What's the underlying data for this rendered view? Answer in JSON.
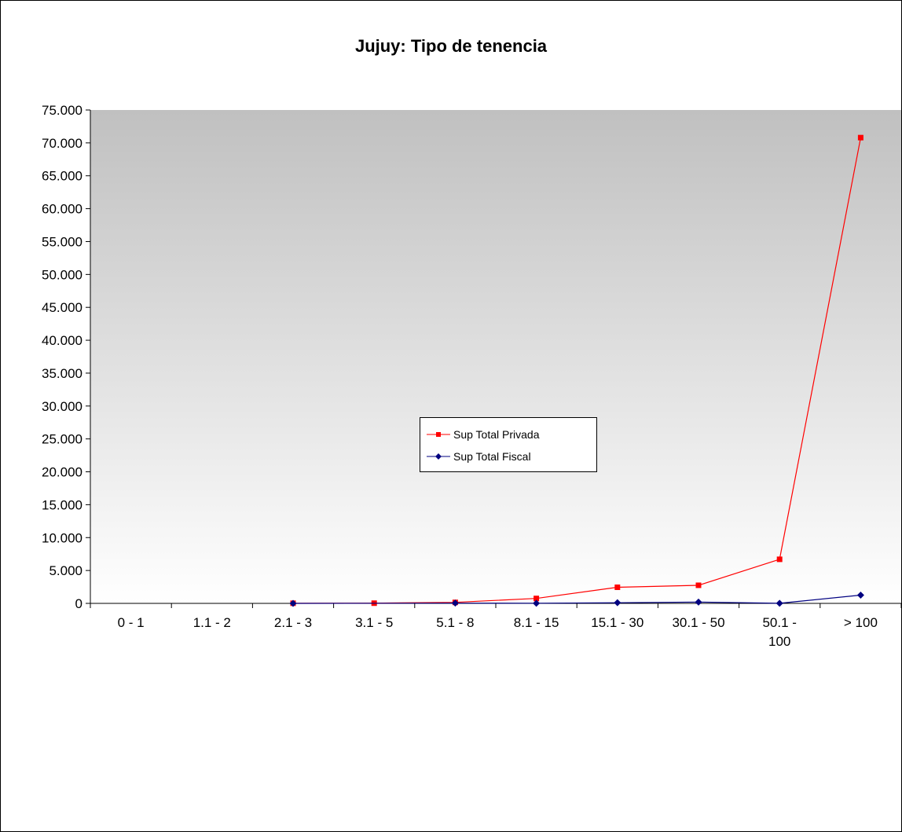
{
  "chart_data": {
    "type": "line",
    "title": "Jujuy: Tipo de tenencia",
    "xlabel": "",
    "ylabel": "",
    "categories": [
      "0 - 1",
      "1.1 - 2",
      "2.1 - 3",
      "3.1 - 5",
      "5.1 - 8",
      "8.1 - 15",
      "15.1 - 30",
      "30.1 - 50",
      "50.1 - 100",
      "> 100"
    ],
    "category_lines": [
      [
        "0 - 1"
      ],
      [
        "1.1 - 2"
      ],
      [
        "2.1 - 3"
      ],
      [
        "3.1 - 5"
      ],
      [
        "5.1 - 8"
      ],
      [
        "8.1 - 15"
      ],
      [
        "15.1 - 30"
      ],
      [
        "30.1 - 50"
      ],
      [
        "50.1 -",
        "100"
      ],
      [
        "> 100"
      ]
    ],
    "ylim": [
      0,
      75000
    ],
    "y_ticks": [
      0,
      5000,
      10000,
      15000,
      20000,
      25000,
      30000,
      35000,
      40000,
      45000,
      50000,
      55000,
      60000,
      65000,
      70000,
      75000
    ],
    "y_tick_labels": [
      "0",
      "5.000",
      "10.000",
      "15.000",
      "20.000",
      "25.000",
      "30.000",
      "35.000",
      "40.000",
      "45.000",
      "50.000",
      "55.000",
      "60.000",
      "65.000",
      "70.000",
      "75.000"
    ],
    "series": [
      {
        "name": "Sup Total Privada",
        "color": "#ff0000",
        "marker": "square",
        "values": [
          null,
          null,
          20,
          30,
          150,
          750,
          2450,
          2750,
          6700,
          70800
        ]
      },
      {
        "name": "Sup Total Fiscal",
        "color": "#000080",
        "marker": "diamond",
        "values": [
          null,
          null,
          0,
          null,
          40,
          20,
          100,
          200,
          10,
          1250
        ]
      }
    ],
    "legend_position": "center",
    "grid": false,
    "plot_background": "gradient gray-to-white"
  }
}
